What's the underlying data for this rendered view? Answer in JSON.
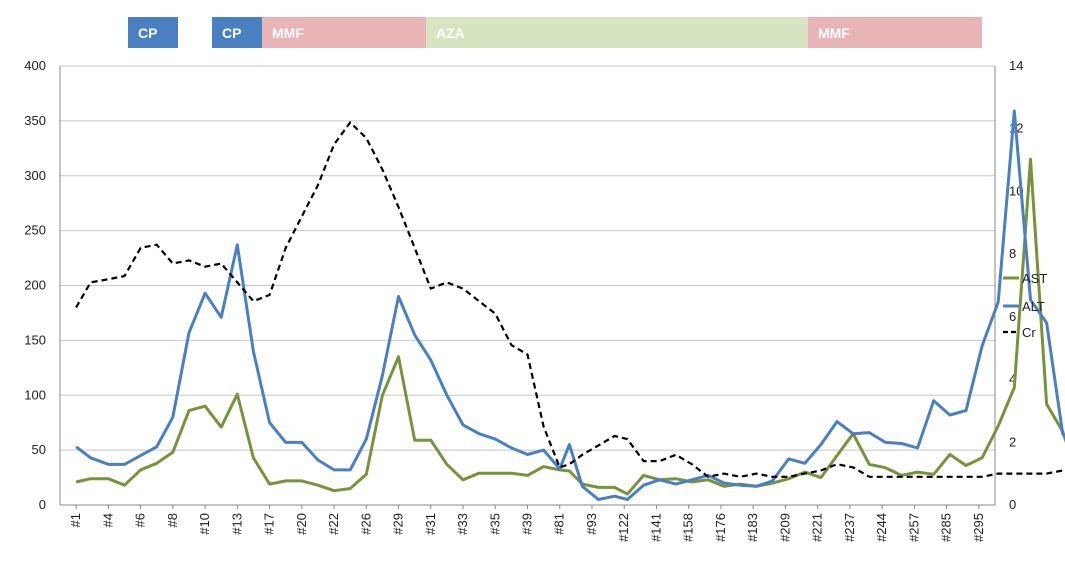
{
  "chart_data": {
    "type": "line",
    "treatment_bands": [
      {
        "label": "CP",
        "start": 4,
        "end": 5,
        "color": "#4a7fc1",
        "text_color": "#ffffff"
      },
      {
        "label": "CP",
        "start": 8,
        "end": 9,
        "color": "#4a7fc1",
        "text_color": "#ffffff"
      },
      {
        "label": "MMF",
        "start": 9,
        "end": 16,
        "color": "#e8b4b6",
        "text_color": "#ffffff"
      },
      {
        "label": "AZA",
        "start": 16,
        "end": 32,
        "color": "#d6e4bf",
        "text_color": "#ffffff"
      },
      {
        "label": "MMF",
        "start": 32,
        "end": 40,
        "color": "#e8b4b6",
        "text_color": "#ffffff"
      }
    ],
    "x_tick_labels": [
      "#1",
      "#4",
      "#6",
      "#8",
      "#10",
      "#13",
      "#17",
      "#20",
      "#22",
      "#26",
      "#29",
      "#31",
      "#33",
      "#35",
      "#39",
      "#81",
      "#93",
      "#122",
      "#141",
      "#158",
      "#176",
      "#183",
      "#209",
      "#221",
      "#237",
      "#244",
      "#257",
      "#285",
      "#295"
    ],
    "y_left": {
      "min": 0,
      "max": 400,
      "ticks": [
        0,
        50,
        100,
        150,
        200,
        250,
        300,
        350,
        400
      ]
    },
    "y_right": {
      "min": 0,
      "max": 14,
      "ticks": [
        0,
        2,
        4,
        6,
        8,
        10,
        12,
        14
      ]
    },
    "grid": true,
    "legend_position": "right",
    "series": [
      {
        "name": "AST",
        "axis": "left",
        "color": "#77933c",
        "dash": "solid",
        "values": [
          [
            1,
            21
          ],
          [
            1.45,
            24
          ],
          [
            2,
            24
          ],
          [
            2.5,
            18
          ],
          [
            3,
            32
          ],
          [
            3.5,
            38
          ],
          [
            4,
            48
          ],
          [
            4.5,
            86
          ],
          [
            5,
            90
          ],
          [
            5.5,
            71
          ],
          [
            6,
            101
          ],
          [
            6.5,
            43
          ],
          [
            7,
            19
          ],
          [
            7.5,
            22
          ],
          [
            8,
            22
          ],
          [
            8.5,
            18
          ],
          [
            9,
            13
          ],
          [
            9.5,
            15
          ],
          [
            10,
            28
          ],
          [
            10.5,
            100
          ],
          [
            11,
            135
          ],
          [
            11.5,
            59
          ],
          [
            12,
            59
          ],
          [
            12.5,
            37
          ],
          [
            13,
            23
          ],
          [
            13.5,
            29
          ],
          [
            14,
            29
          ],
          [
            14.5,
            29
          ],
          [
            15,
            27
          ],
          [
            15.5,
            35
          ],
          [
            16,
            32
          ],
          [
            16.3,
            31
          ],
          [
            16.7,
            19
          ],
          [
            17.2,
            16
          ],
          [
            17.7,
            16
          ],
          [
            18.1,
            10
          ],
          [
            18.6,
            27
          ],
          [
            19.1,
            23
          ],
          [
            19.6,
            24
          ],
          [
            20.1,
            21
          ],
          [
            20.6,
            23
          ],
          [
            21.1,
            17
          ],
          [
            21.6,
            19
          ],
          [
            22.1,
            17
          ],
          [
            22.6,
            20
          ],
          [
            23.1,
            24
          ],
          [
            23.6,
            30
          ],
          [
            24.1,
            25
          ],
          [
            24.6,
            45
          ],
          [
            25.1,
            65
          ],
          [
            25.6,
            37
          ],
          [
            26.1,
            34
          ],
          [
            26.6,
            27
          ],
          [
            27.1,
            30
          ],
          [
            27.6,
            28
          ],
          [
            28.1,
            46
          ],
          [
            28.6,
            36
          ],
          [
            29.1,
            43
          ],
          [
            29.6,
            72
          ],
          [
            30.1,
            107
          ],
          [
            30.6,
            315
          ],
          [
            31.1,
            92
          ],
          [
            31.6,
            67
          ],
          [
            32.1,
            23
          ],
          [
            32.6,
            26
          ],
          [
            33.1,
            14
          ],
          [
            33.6,
            22
          ],
          [
            34.1,
            15
          ],
          [
            34.6,
            20
          ],
          [
            35.1,
            18
          ],
          [
            35.6,
            16
          ],
          [
            36.1,
            20
          ],
          [
            36.6,
            15
          ],
          [
            37.1,
            15
          ],
          [
            37.6,
            14
          ],
          [
            38.1,
            12
          ],
          [
            38.6,
            15
          ],
          [
            39.1,
            16
          ],
          [
            39.6,
            20
          ]
        ]
      },
      {
        "name": "ALT",
        "axis": "left",
        "color": "#4a7fc1",
        "dash": "solid",
        "values": [
          [
            1,
            53
          ],
          [
            1.45,
            43
          ],
          [
            2,
            37
          ],
          [
            2.5,
            37
          ],
          [
            3,
            45
          ],
          [
            3.5,
            53
          ],
          [
            4,
            80
          ],
          [
            4.5,
            157
          ],
          [
            5,
            193
          ],
          [
            5.5,
            171
          ],
          [
            6,
            237
          ],
          [
            6.5,
            140
          ],
          [
            7,
            75
          ],
          [
            7.5,
            57
          ],
          [
            8,
            57
          ],
          [
            8.5,
            41
          ],
          [
            9,
            32
          ],
          [
            9.5,
            32
          ],
          [
            10,
            60
          ],
          [
            10.5,
            118
          ],
          [
            11,
            190
          ],
          [
            11.5,
            155
          ],
          [
            12,
            132
          ],
          [
            12.5,
            100
          ],
          [
            13,
            73
          ],
          [
            13.5,
            65
          ],
          [
            14,
            60
          ],
          [
            14.5,
            52
          ],
          [
            15,
            46
          ],
          [
            15.5,
            50
          ],
          [
            16,
            33
          ],
          [
            16.3,
            55
          ],
          [
            16.7,
            17
          ],
          [
            17.2,
            5
          ],
          [
            17.7,
            8
          ],
          [
            18.1,
            5
          ],
          [
            18.6,
            18
          ],
          [
            19.1,
            23
          ],
          [
            19.6,
            19
          ],
          [
            20.1,
            23
          ],
          [
            20.6,
            27
          ],
          [
            21.1,
            20
          ],
          [
            21.6,
            18
          ],
          [
            22.1,
            17
          ],
          [
            22.6,
            22
          ],
          [
            23.1,
            42
          ],
          [
            23.6,
            38
          ],
          [
            24.1,
            55
          ],
          [
            24.6,
            76
          ],
          [
            25.1,
            65
          ],
          [
            25.6,
            66
          ],
          [
            26.1,
            57
          ],
          [
            26.6,
            56
          ],
          [
            27.1,
            52
          ],
          [
            27.6,
            95
          ],
          [
            28.1,
            82
          ],
          [
            28.6,
            86
          ],
          [
            29.1,
            145
          ],
          [
            29.6,
            185
          ],
          [
            30.1,
            359
          ],
          [
            30.6,
            187
          ],
          [
            31.1,
            166
          ],
          [
            31.6,
            65
          ],
          [
            32.1,
            42
          ],
          [
            32.6,
            32
          ],
          [
            33.1,
            37
          ],
          [
            33.6,
            11
          ],
          [
            34.1,
            11
          ],
          [
            34.6,
            15
          ],
          [
            35.1,
            20
          ],
          [
            35.6,
            17
          ],
          [
            36.1,
            14
          ],
          [
            36.6,
            14
          ],
          [
            37.1,
            14
          ],
          [
            37.6,
            14
          ],
          [
            38.1,
            15
          ],
          [
            38.6,
            15
          ],
          [
            39.1,
            14
          ],
          [
            39.6,
            14
          ]
        ]
      },
      {
        "name": "Cr",
        "axis": "right",
        "color": "#000000",
        "dash": "dashed",
        "values": [
          [
            1,
            6.3
          ],
          [
            1.45,
            7.1
          ],
          [
            2,
            7.2
          ],
          [
            2.5,
            7.3
          ],
          [
            3,
            8.2
          ],
          [
            3.5,
            8.3
          ],
          [
            4,
            7.7
          ],
          [
            4.5,
            7.8
          ],
          [
            5,
            7.6
          ],
          [
            5.5,
            7.7
          ],
          [
            6,
            7.1
          ],
          [
            6.5,
            6.5
          ],
          [
            7,
            6.7
          ],
          [
            7.5,
            8.2
          ],
          [
            8,
            9.2
          ],
          [
            8.5,
            10.2
          ],
          [
            9,
            11.5
          ],
          [
            9.5,
            12.2
          ],
          [
            10,
            11.7
          ],
          [
            10.5,
            10.7
          ],
          [
            11,
            9.5
          ],
          [
            11.5,
            8.2
          ],
          [
            12,
            6.9
          ],
          [
            12.5,
            7.1
          ],
          [
            13,
            6.9
          ],
          [
            13.5,
            6.5
          ],
          [
            14,
            6.1
          ],
          [
            14.5,
            5.1
          ],
          [
            15,
            4.8
          ],
          [
            15.5,
            2.5
          ],
          [
            16,
            1.2
          ],
          [
            16.3,
            1.3
          ],
          [
            16.7,
            1.6
          ],
          [
            17.2,
            1.9
          ],
          [
            17.7,
            2.2
          ],
          [
            18.1,
            2.1
          ],
          [
            18.6,
            1.4
          ],
          [
            19.1,
            1.4
          ],
          [
            19.6,
            1.6
          ],
          [
            20.1,
            1.3
          ],
          [
            20.6,
            0.9
          ],
          [
            21.1,
            1.0
          ],
          [
            21.6,
            0.9
          ],
          [
            22.1,
            1.0
          ],
          [
            22.6,
            0.9
          ],
          [
            23.1,
            0.9
          ],
          [
            23.6,
            1.0
          ],
          [
            24.1,
            1.1
          ],
          [
            24.6,
            1.3
          ],
          [
            25.1,
            1.2
          ],
          [
            25.6,
            0.9
          ],
          [
            26.1,
            0.9
          ],
          [
            26.6,
            0.9
          ],
          [
            27.1,
            0.9
          ],
          [
            27.6,
            0.9
          ],
          [
            28.1,
            0.9
          ],
          [
            28.6,
            0.9
          ],
          [
            29.1,
            0.9
          ],
          [
            29.6,
            1.0
          ],
          [
            30.1,
            1.0
          ],
          [
            30.6,
            1.0
          ],
          [
            31.1,
            1.0
          ],
          [
            31.6,
            1.1
          ],
          [
            32.1,
            1.0
          ],
          [
            32.6,
            0.9
          ],
          [
            33.1,
            0.9
          ],
          [
            33.6,
            0.9
          ],
          [
            34.1,
            0.9
          ],
          [
            34.6,
            0.9
          ],
          [
            35.1,
            1.0
          ],
          [
            35.6,
            0.9
          ],
          [
            36.1,
            1.1
          ],
          [
            36.6,
            1.1
          ],
          [
            37.1,
            1.1
          ],
          [
            37.6,
            0.8
          ],
          [
            38.1,
            0.8
          ],
          [
            38.6,
            0.9
          ],
          [
            39.1,
            0.9
          ],
          [
            39.6,
            0.9
          ]
        ]
      }
    ]
  }
}
